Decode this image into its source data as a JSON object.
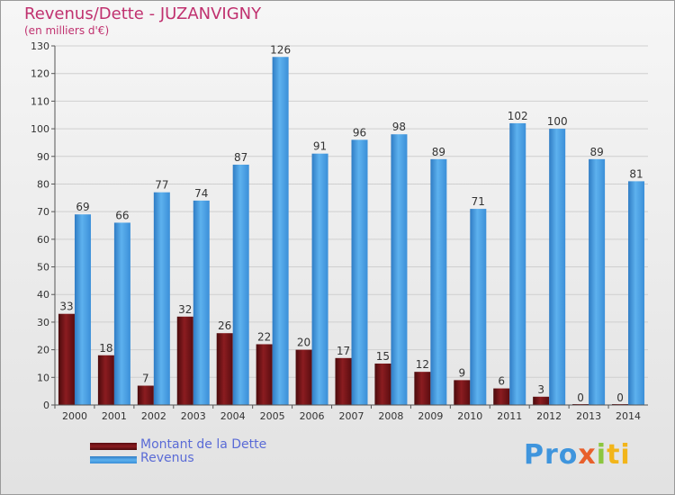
{
  "title": "Revenus/Dette - JUZANVIGNY",
  "subtitle": "(en milliers d'€)",
  "legend": [
    {
      "label": "Montant de la Dette",
      "color": "#7a1518"
    },
    {
      "label": "Revenus",
      "color": "#3f95dd"
    }
  ],
  "logo": {
    "parts": [
      "Pro",
      "x",
      "i",
      "ti"
    ],
    "colors": [
      "#3f95dd",
      "#e8602c",
      "#8cc63f",
      "#f2b51a"
    ]
  },
  "chart_data": {
    "type": "bar",
    "title": "Revenus/Dette - JUZANVIGNY",
    "ylabel": "(en milliers d'€)",
    "categories": [
      "2000",
      "2001",
      "2002",
      "2003",
      "2004",
      "2005",
      "2006",
      "2007",
      "2008",
      "2009",
      "2010",
      "2011",
      "2012",
      "2013",
      "2014"
    ],
    "series": [
      {
        "name": "Montant de la Dette",
        "color": "#7a1518",
        "values": [
          33,
          18,
          7,
          32,
          26,
          22,
          20,
          17,
          15,
          12,
          9,
          6,
          3,
          0,
          0
        ]
      },
      {
        "name": "Revenus",
        "color": "#3f95dd",
        "values": [
          69,
          66,
          77,
          74,
          87,
          126,
          91,
          96,
          98,
          89,
          71,
          102,
          100,
          89,
          81
        ]
      }
    ],
    "ylim": [
      0,
      130
    ],
    "yticks": [
      0,
      10,
      20,
      30,
      40,
      50,
      60,
      70,
      80,
      90,
      100,
      110,
      120,
      130
    ],
    "grid": true,
    "legend_position": "bottom-left"
  }
}
